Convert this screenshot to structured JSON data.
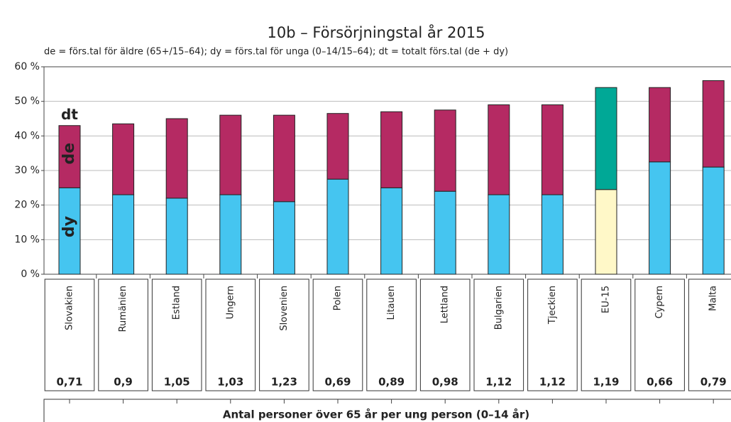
{
  "chart_data": {
    "type": "stacked_bar",
    "title": "10b – Försörjningstal år 2015",
    "subtitle": "de = förs.tal för äldre (65+/15–64); dy = förs.tal för unga (0–14/15–64); dt = totalt förs.tal (de + dy)",
    "total_label": "dt",
    "categories": [
      "Slovakien",
      "Rumänien",
      "Estland",
      "Ungern",
      "Slovenien",
      "Polen",
      "Litauen",
      "Lettland",
      "Bulgarien",
      "Tjeckien",
      "EU-15",
      "Cypern",
      "Malta"
    ],
    "series": [
      {
        "name": "dy",
        "color": "#45c5f0",
        "colors": [
          "#45c5f0",
          "#45c5f0",
          "#45c5f0",
          "#45c5f0",
          "#45c5f0",
          "#45c5f0",
          "#45c5f0",
          "#45c5f0",
          "#45c5f0",
          "#45c5f0",
          "#fff8c8",
          "#45c5f0",
          "#45c5f0"
        ],
        "values": [
          25,
          23,
          22,
          23,
          21,
          27.5,
          25,
          24,
          23,
          23,
          24.5,
          32.5,
          31
        ]
      },
      {
        "name": "de",
        "color": "#b52a63",
        "colors": [
          "#b52a63",
          "#b52a63",
          "#b52a63",
          "#b52a63",
          "#b52a63",
          "#b52a63",
          "#b52a63",
          "#b52a63",
          "#b52a63",
          "#b52a63",
          "#00a896",
          "#b52a63",
          "#b52a63"
        ],
        "values": [
          18,
          20.5,
          23,
          23,
          25,
          19,
          22,
          23.5,
          26,
          26,
          29.5,
          21.5,
          25
        ]
      }
    ],
    "ratios": {
      "name": "Antal personer över 65 år per ung person (0–14 år)",
      "values": [
        0.71,
        0.9,
        1.05,
        1.03,
        1.23,
        0.69,
        0.89,
        0.98,
        1.12,
        1.12,
        1.19,
        0.66,
        0.79
      ],
      "value_labels": [
        "0,71",
        "0,9",
        "1,05",
        "1,03",
        "1,23",
        "0,69",
        "0,89",
        "0,98",
        "1,12",
        "1,12",
        "1,19",
        "0,66",
        "0,79"
      ]
    },
    "ylim": [
      0,
      60
    ],
    "yticks": [
      {
        "value": 0,
        "label": "0 %"
      },
      {
        "value": 10,
        "label": "10 %"
      },
      {
        "value": 20,
        "label": "20 %"
      },
      {
        "value": 30,
        "label": "30 %"
      },
      {
        "value": 40,
        "label": "40 %"
      },
      {
        "value": 50,
        "label": "50 %"
      },
      {
        "value": 60,
        "label": "60 %"
      }
    ],
    "grid": true
  }
}
